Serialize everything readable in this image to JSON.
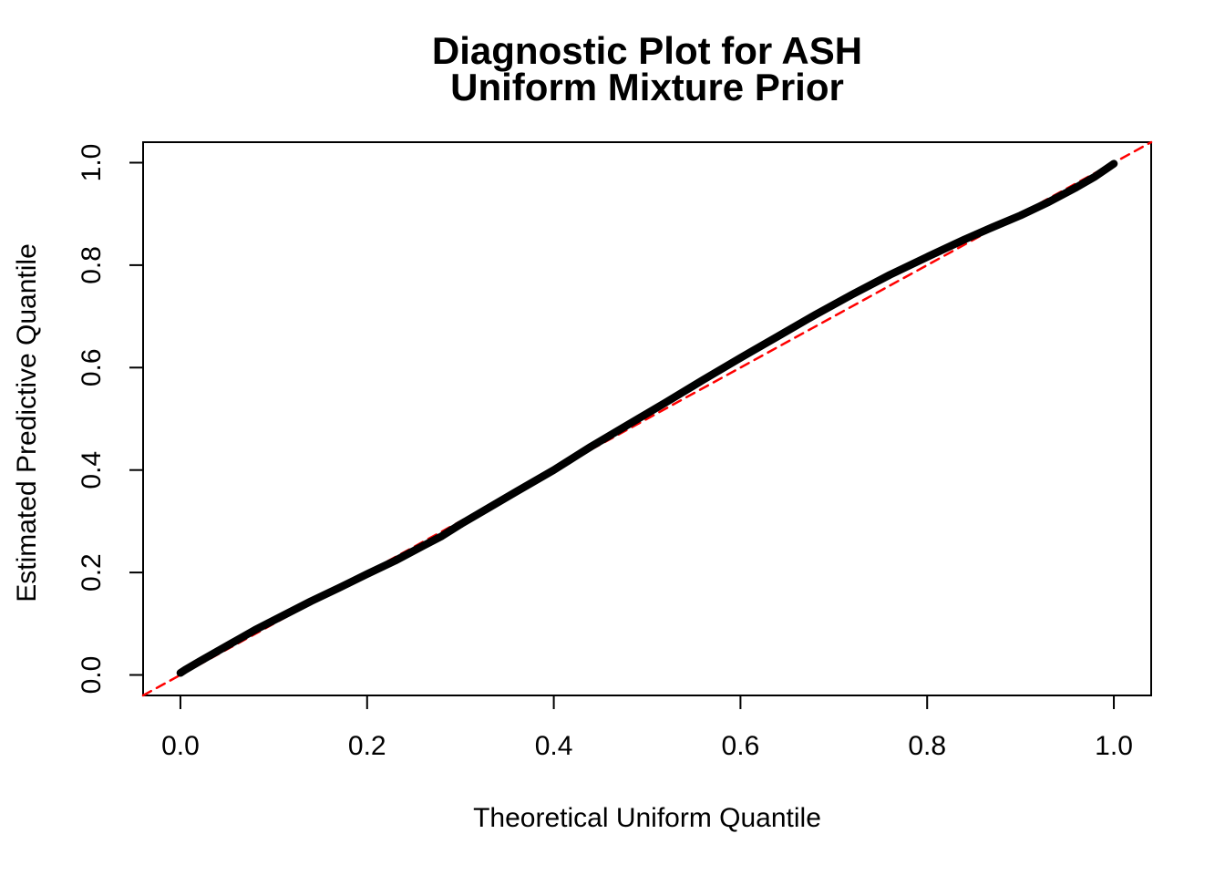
{
  "figure": {
    "title_line1": "Diagnostic Plot for ASH",
    "title_line2": "Uniform Mixture Prior",
    "x_axis_label": "Theoretical Uniform Quantile",
    "y_axis_label": "Estimated Predictive Quantile"
  },
  "chart_data": {
    "type": "line",
    "title": "Diagnostic Plot for ASH\nUniform Mixture Prior",
    "xlabel": "Theoretical Uniform Quantile",
    "ylabel": "Estimated Predictive Quantile",
    "xlim": [
      -0.04,
      1.04
    ],
    "ylim": [
      -0.04,
      1.04
    ],
    "x_ticks": [
      0.0,
      0.2,
      0.4,
      0.6,
      0.8,
      1.0
    ],
    "y_ticks": [
      0.0,
      0.2,
      0.4,
      0.6,
      0.8,
      1.0
    ],
    "x_tick_labels": [
      "0.0",
      "0.2",
      "0.4",
      "0.6",
      "0.8",
      "1.0"
    ],
    "y_tick_labels": [
      "0.0",
      "0.2",
      "0.4",
      "0.6",
      "0.8",
      "1.0"
    ],
    "grid": false,
    "legend": "none",
    "frame_color": "#000000",
    "series": [
      {
        "name": "identity-reference-line",
        "description": "y = x reference diagonal",
        "color": "#FF0000",
        "style": "dashed",
        "line_width": 2.5,
        "points": [
          [
            -0.04,
            -0.04
          ],
          [
            1.04,
            1.04
          ]
        ]
      },
      {
        "name": "qq-curve",
        "description": "Estimated predictive quantiles vs theoretical uniform quantiles",
        "color": "#000000",
        "style": "solid",
        "line_width": 8.5,
        "points": [
          [
            0.0,
            0.004
          ],
          [
            0.005,
            0.01
          ],
          [
            0.02,
            0.026
          ],
          [
            0.05,
            0.057
          ],
          [
            0.08,
            0.088
          ],
          [
            0.11,
            0.116
          ],
          [
            0.14,
            0.144
          ],
          [
            0.17,
            0.17
          ],
          [
            0.2,
            0.197
          ],
          [
            0.23,
            0.223
          ],
          [
            0.26,
            0.252
          ],
          [
            0.28,
            0.271
          ],
          [
            0.3,
            0.294
          ],
          [
            0.33,
            0.326
          ],
          [
            0.36,
            0.358
          ],
          [
            0.4,
            0.4
          ],
          [
            0.44,
            0.446
          ],
          [
            0.48,
            0.489
          ],
          [
            0.52,
            0.532
          ],
          [
            0.56,
            0.576
          ],
          [
            0.6,
            0.619
          ],
          [
            0.64,
            0.661
          ],
          [
            0.68,
            0.703
          ],
          [
            0.72,
            0.743
          ],
          [
            0.76,
            0.781
          ],
          [
            0.8,
            0.816
          ],
          [
            0.84,
            0.85
          ],
          [
            0.87,
            0.874
          ],
          [
            0.9,
            0.897
          ],
          [
            0.93,
            0.923
          ],
          [
            0.96,
            0.952
          ],
          [
            0.98,
            0.973
          ],
          [
            0.992,
            0.988
          ],
          [
            1.0,
            0.998
          ]
        ]
      }
    ]
  }
}
